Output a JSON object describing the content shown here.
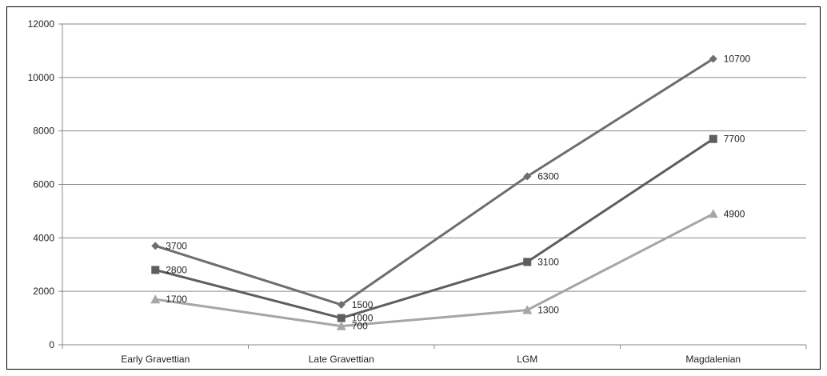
{
  "chart_data": {
    "type": "line",
    "categories": [
      "Early Gravettian",
      "Late Gravettian",
      "LGM",
      "Magdalenian"
    ],
    "ylim": [
      0,
      12000
    ],
    "yticks": [
      0,
      2000,
      4000,
      6000,
      8000,
      10000,
      12000
    ],
    "grid": true,
    "legend": "none",
    "series": [
      {
        "values": [
          3700,
          1500,
          6300,
          10700
        ],
        "marker": "diamond",
        "color": "#6e6e6e"
      },
      {
        "values": [
          2800,
          1000,
          3100,
          7700
        ],
        "marker": "square",
        "color": "#5e5e5e"
      },
      {
        "values": [
          1700,
          700,
          1300,
          4900
        ],
        "marker": "triangle",
        "color": "#a6a6a6"
      }
    ]
  }
}
